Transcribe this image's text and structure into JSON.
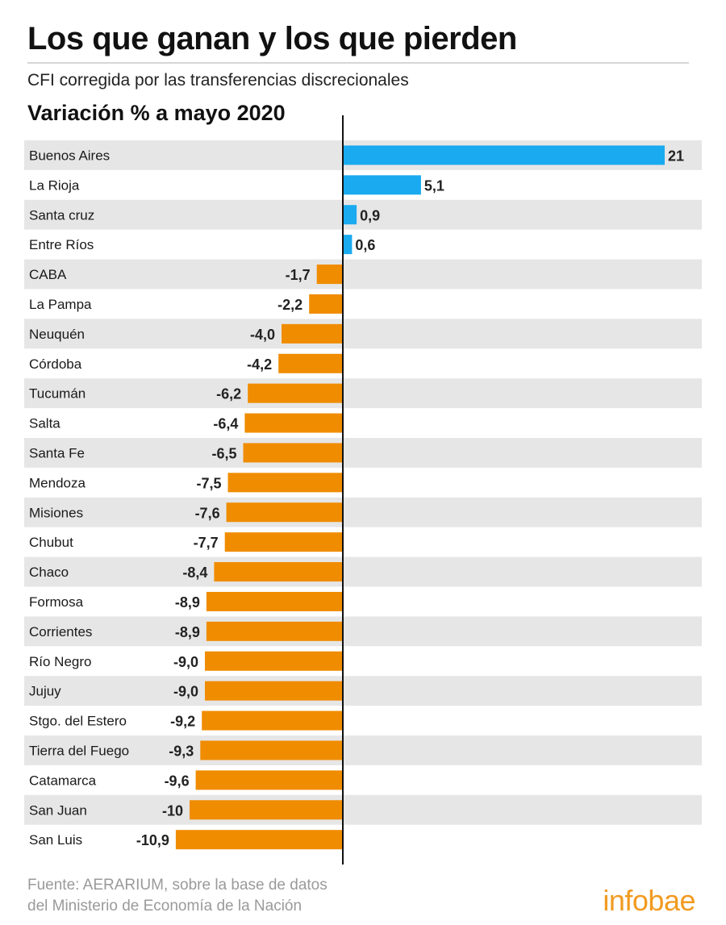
{
  "header": {
    "title": "Los que ganan y los que pierden",
    "subtitle": "CFI corregida por las transferencias discrecionales",
    "section_title": "Variación % a mayo 2020"
  },
  "footer": {
    "source_line1": "Fuente: AERARIUM, sobre la base de datos",
    "source_line2": "del Ministerio de Economía de la Nación",
    "brand": "infobae"
  },
  "colors": {
    "positive": "#19aaf0",
    "negative": "#f08c00",
    "row_stripe": "#e6e6e6",
    "brand": "#f29a1f"
  },
  "chart_data": {
    "type": "bar",
    "orientation": "horizontal",
    "title": "Variación % a mayo 2020",
    "categories": [
      "Buenos Aires",
      "La Rioja",
      "Santa cruz",
      "Entre Ríos",
      "CABA",
      "La Pampa",
      "Neuquén",
      "Córdoba",
      "Tucumán",
      "Salta",
      "Santa Fe",
      "Mendoza",
      "Misiones",
      "Chubut",
      "Chaco",
      "Formosa",
      "Corrientes",
      "Río Negro",
      "Jujuy",
      "Stgo. del Estero",
      "Tierra del Fuego",
      "Catamarca",
      "San Juan",
      "San Luis"
    ],
    "values": [
      21,
      5.1,
      0.9,
      0.6,
      -1.7,
      -2.2,
      -4.0,
      -4.2,
      -6.2,
      -6.4,
      -6.5,
      -7.5,
      -7.6,
      -7.7,
      -8.4,
      -8.9,
      -8.9,
      -9.0,
      -9.0,
      -9.2,
      -9.3,
      -9.6,
      -10,
      -10.9
    ],
    "value_labels": [
      "21",
      "5,1",
      "0,9",
      "0,6",
      "-1,7",
      "-2,2",
      "-4,0",
      "-4,2",
      "-6,2",
      "-6,4",
      "-6,5",
      "-7,5",
      "-7,6",
      "-7,7",
      "-8,4",
      "-8,9",
      "-8,9",
      "-9,0",
      "-9,0",
      "-9,2",
      "-9,3",
      "-9,6",
      "-10",
      "-10,9"
    ],
    "xlim": [
      -11,
      21.5
    ],
    "grid": false,
    "legend": "none",
    "row_striping": "alternate"
  }
}
